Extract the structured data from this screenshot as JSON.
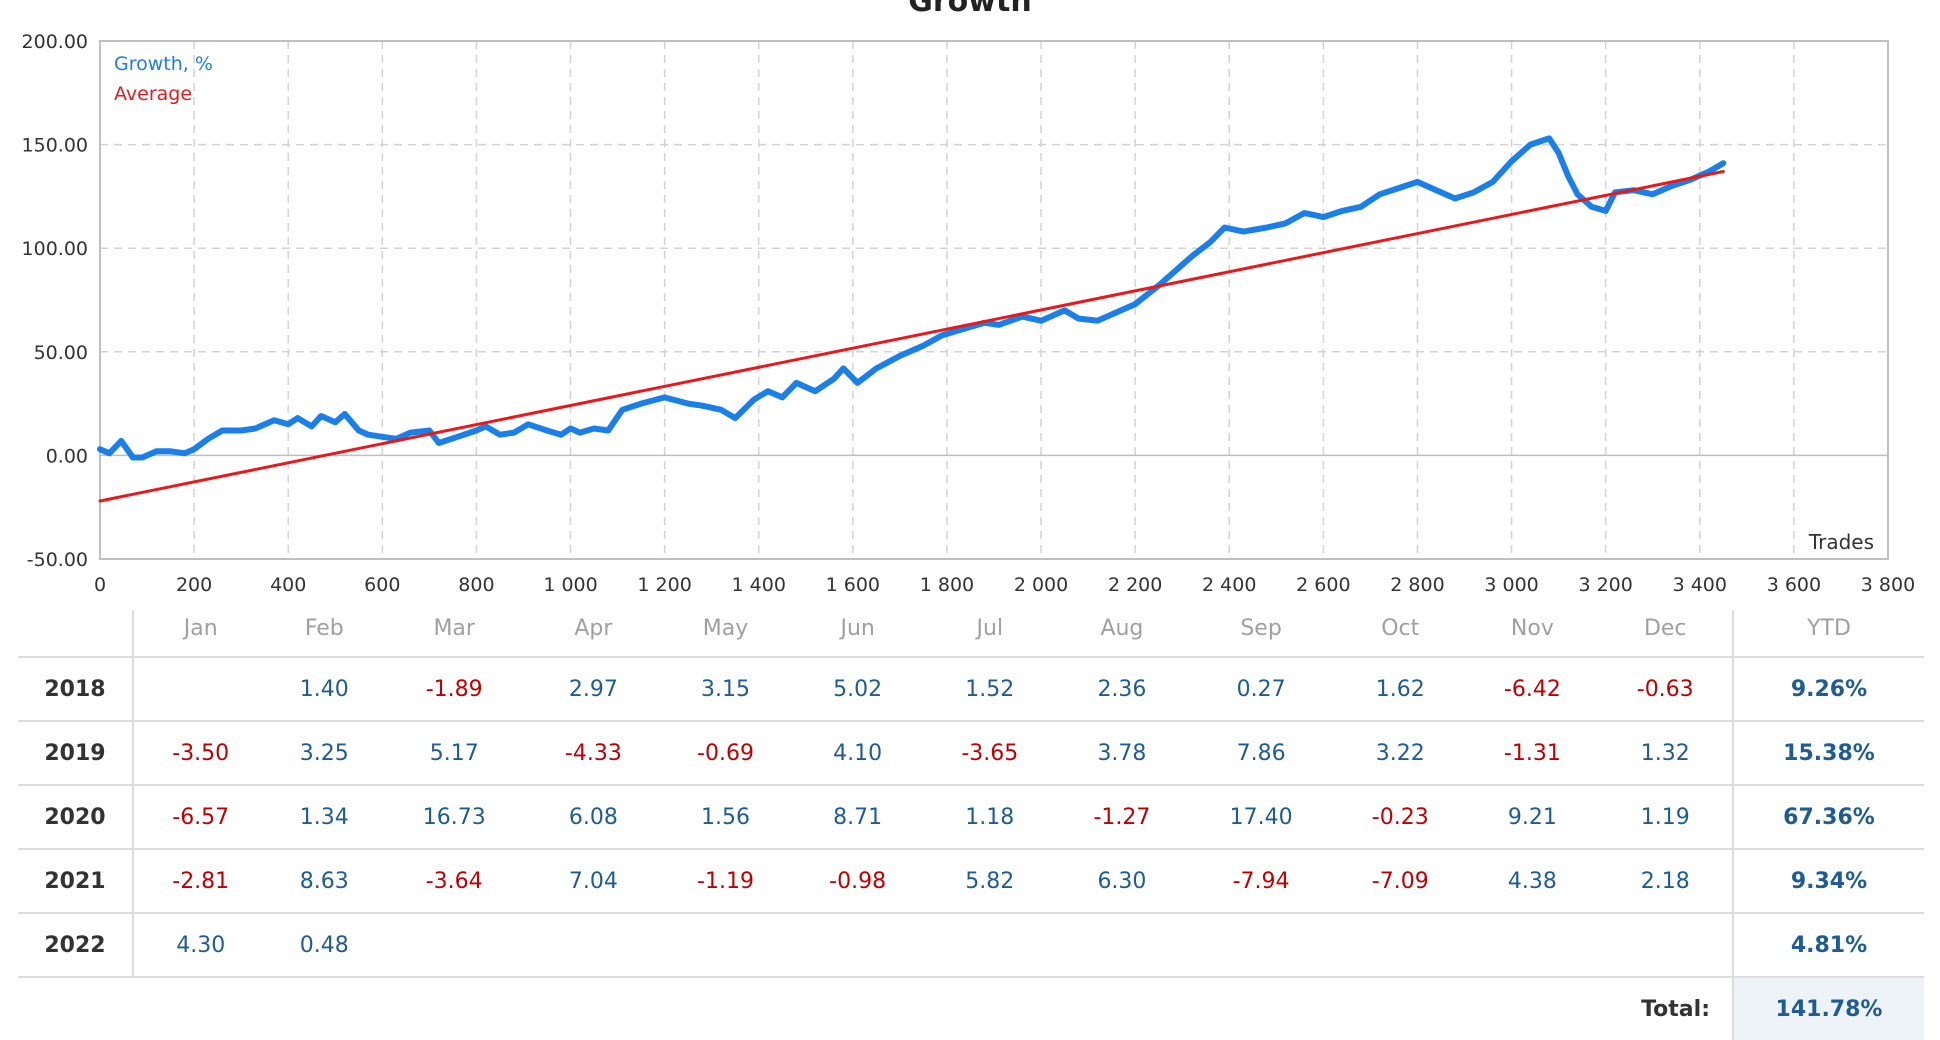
{
  "chart_data": {
    "type": "line",
    "title": "Growth",
    "xlabel": "Trades",
    "ylabel": "",
    "xlim": [
      0,
      3800
    ],
    "ylim": [
      -50,
      200
    ],
    "x_ticks": [
      "0",
      "200",
      "400",
      "600",
      "800",
      "1 000",
      "1 200",
      "1 400",
      "1 600",
      "1 800",
      "2 000",
      "2 200",
      "2 400",
      "2 600",
      "2 800",
      "3 000",
      "3 200",
      "3 400",
      "3 600",
      "3 800"
    ],
    "y_ticks": [
      "-50.00",
      "0.00",
      "50.00",
      "100.00",
      "150.00",
      "200.00"
    ],
    "grid": true,
    "legend_position": "top-left",
    "series": [
      {
        "name": "Growth, %",
        "color": "#1a7fe8",
        "x": [
          0,
          20,
          45,
          70,
          90,
          120,
          150,
          180,
          200,
          230,
          260,
          300,
          330,
          370,
          400,
          420,
          450,
          470,
          500,
          520,
          550,
          570,
          600,
          630,
          660,
          700,
          720,
          760,
          800,
          820,
          850,
          880,
          910,
          950,
          980,
          1000,
          1020,
          1050,
          1080,
          1110,
          1150,
          1200,
          1250,
          1280,
          1320,
          1350,
          1390,
          1420,
          1450,
          1480,
          1520,
          1560,
          1580,
          1610,
          1650,
          1700,
          1750,
          1790,
          1850,
          1880,
          1910,
          1960,
          2000,
          2050,
          2080,
          2120,
          2150,
          2200,
          2250,
          2280,
          2320,
          2360,
          2390,
          2430,
          2480,
          2520,
          2560,
          2600,
          2640,
          2680,
          2720,
          2760,
          2800,
          2840,
          2880,
          2920,
          2960,
          3000,
          3040,
          3080,
          3100,
          3120,
          3140,
          3170,
          3200,
          3220,
          3260,
          3300,
          3340,
          3380,
          3420,
          3450
        ],
        "values": [
          3,
          1,
          7,
          -1,
          -1,
          2,
          2,
          1,
          3,
          8,
          12,
          12,
          13,
          17,
          15,
          18,
          14,
          19,
          16,
          20,
          12,
          10,
          9,
          8,
          11,
          12,
          6,
          9,
          12,
          14,
          10,
          11,
          15,
          12,
          10,
          13,
          11,
          13,
          12,
          22,
          25,
          28,
          25,
          24,
          22,
          18,
          27,
          31,
          28,
          35,
          31,
          37,
          42,
          35,
          42,
          48,
          53,
          58,
          62,
          64,
          63,
          67,
          65,
          70,
          66,
          65,
          68,
          73,
          82,
          88,
          96,
          103,
          110,
          108,
          110,
          112,
          117,
          115,
          118,
          120,
          126,
          129,
          132,
          128,
          124,
          127,
          132,
          142,
          150,
          153,
          146,
          135,
          126,
          120,
          118,
          127,
          128,
          126,
          130,
          133,
          137,
          141
        ]
      },
      {
        "name": "Average",
        "color": "#e8191a",
        "x": [
          0,
          3450
        ],
        "values": [
          -22,
          137
        ]
      }
    ]
  },
  "table": {
    "months": [
      "Jan",
      "Feb",
      "Mar",
      "Apr",
      "May",
      "Jun",
      "Jul",
      "Aug",
      "Sep",
      "Oct",
      "Nov",
      "Dec"
    ],
    "ytd_header": "YTD",
    "rows": [
      {
        "year": "2018",
        "values": [
          "",
          "1.40",
          "-1.89",
          "2.97",
          "3.15",
          "5.02",
          "1.52",
          "2.36",
          "0.27",
          "1.62",
          "-6.42",
          "-0.63"
        ],
        "ytd": "9.26%"
      },
      {
        "year": "2019",
        "values": [
          "-3.50",
          "3.25",
          "5.17",
          "-4.33",
          "-0.69",
          "4.10",
          "-3.65",
          "3.78",
          "7.86",
          "3.22",
          "-1.31",
          "1.32"
        ],
        "ytd": "15.38%"
      },
      {
        "year": "2020",
        "values": [
          "-6.57",
          "1.34",
          "16.73",
          "6.08",
          "1.56",
          "8.71",
          "1.18",
          "-1.27",
          "17.40",
          "-0.23",
          "9.21",
          "1.19"
        ],
        "ytd": "67.36%"
      },
      {
        "year": "2021",
        "values": [
          "-2.81",
          "8.63",
          "-3.64",
          "7.04",
          "-1.19",
          "-0.98",
          "5.82",
          "6.30",
          "-7.94",
          "-7.09",
          "4.38",
          "2.18"
        ],
        "ytd": "9.34%"
      },
      {
        "year": "2022",
        "values": [
          "4.30",
          "0.48",
          "",
          "",
          "",
          "",
          "",
          "",
          "",
          "",
          "",
          ""
        ],
        "ytd": "4.81%"
      }
    ],
    "total_label": "Total:",
    "total_value": "141.78%"
  }
}
